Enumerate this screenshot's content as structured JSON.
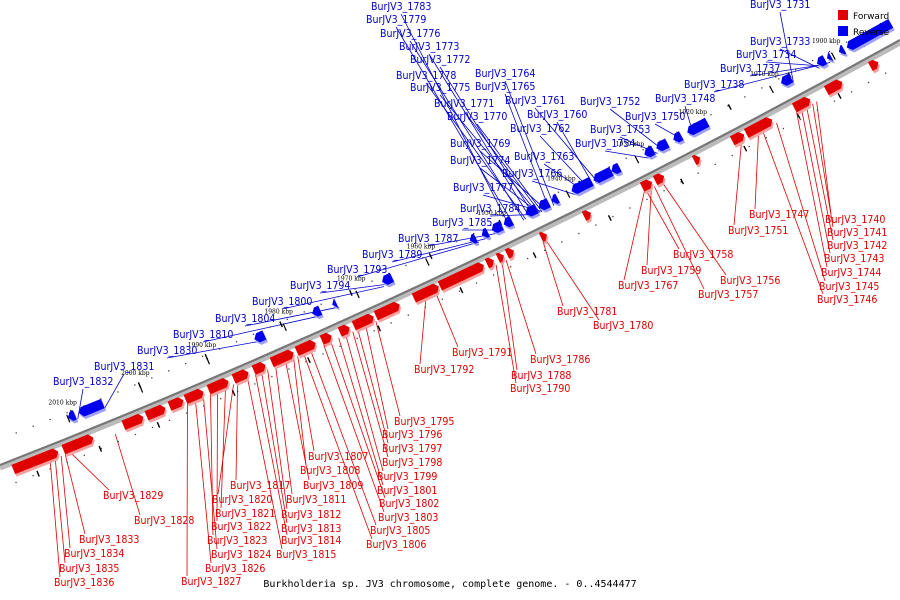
{
  "caption": "Burkholderia sp. JV3 chromosome, complete genome. - 0..4544477",
  "legend": [
    {
      "label": "Forward",
      "color": "#e00000"
    },
    {
      "label": "Reverse",
      "color": "#0000ee"
    }
  ],
  "colors": {
    "forward": "#e00000",
    "reverse": "#0000ee",
    "backbone": "#777777"
  },
  "ticks": [
    "1900 kbp",
    "1910 kbp",
    "1920 kbp",
    "1930 kbp",
    "1940 kbp",
    "1950 kbp",
    "1960 kbp",
    "1970 kbp",
    "1980 kbp",
    "1990 kbp",
    "2000 kbp",
    "2010 kbp"
  ],
  "reverse_genes": [
    "BurJV3_1731",
    "BurJV3_1733",
    "BurJV3_1734",
    "BurJV3_1737",
    "BurJV3_1738",
    "BurJV3_1748",
    "BurJV3_1750",
    "BurJV3_1752",
    "BurJV3_1753",
    "BurJV3_1754",
    "BurJV3_1760",
    "BurJV3_1761",
    "BurJV3_1762",
    "BurJV3_1763",
    "BurJV3_1764",
    "BurJV3_1765",
    "BurJV3_1766",
    "BurJV3_1769",
    "BurJV3_1770",
    "BurJV3_1771",
    "BurJV3_1772",
    "BurJV3_1773",
    "BurJV3_1774",
    "BurJV3_1775",
    "BurJV3_1776",
    "BurJV3_1777",
    "BurJV3_1778",
    "BurJV3_1779",
    "BurJV3_1783",
    "BurJV3_1784",
    "BurJV3_1785",
    "BurJV3_1787",
    "BurJV3_1789",
    "BurJV3_1793",
    "BurJV3_1794",
    "BurJV3_1800",
    "BurJV3_1804",
    "BurJV3_1810",
    "BurJV3_1830",
    "BurJV3_1831",
    "BurJV3_1832"
  ],
  "forward_genes": [
    "BurJV3_1740",
    "BurJV3_1741",
    "BurJV3_1742",
    "BurJV3_1743",
    "BurJV3_1744",
    "BurJV3_1745",
    "BurJV3_1746",
    "BurJV3_1747",
    "BurJV3_1751",
    "BurJV3_1756",
    "BurJV3_1757",
    "BurJV3_1758",
    "BurJV3_1759",
    "BurJV3_1767",
    "BurJV3_1780",
    "BurJV3_1781",
    "BurJV3_1786",
    "BurJV3_1788",
    "BurJV3_1790",
    "BurJV3_1791",
    "BurJV3_1792",
    "BurJV3_1795",
    "BurJV3_1796",
    "BurJV3_1797",
    "BurJV3_1798",
    "BurJV3_1799",
    "BurJV3_1801",
    "BurJV3_1802",
    "BurJV3_1803",
    "BurJV3_1805",
    "BurJV3_1806",
    "BurJV3_1807",
    "BurJV3_1808",
    "BurJV3_1809",
    "BurJV3_1811",
    "BurJV3_1812",
    "BurJV3_1813",
    "BurJV3_1814",
    "BurJV3_1815",
    "BurJV3_1817",
    "BurJV3_1820",
    "BurJV3_1821",
    "BurJV3_1822",
    "BurJV3_1823",
    "BurJV3_1824",
    "BurJV3_1826",
    "BurJV3_1827",
    "BurJV3_1828",
    "BurJV3_1829",
    "BurJV3_1833",
    "BurJV3_1834",
    "BurJV3_1835",
    "BurJV3_1836"
  ]
}
